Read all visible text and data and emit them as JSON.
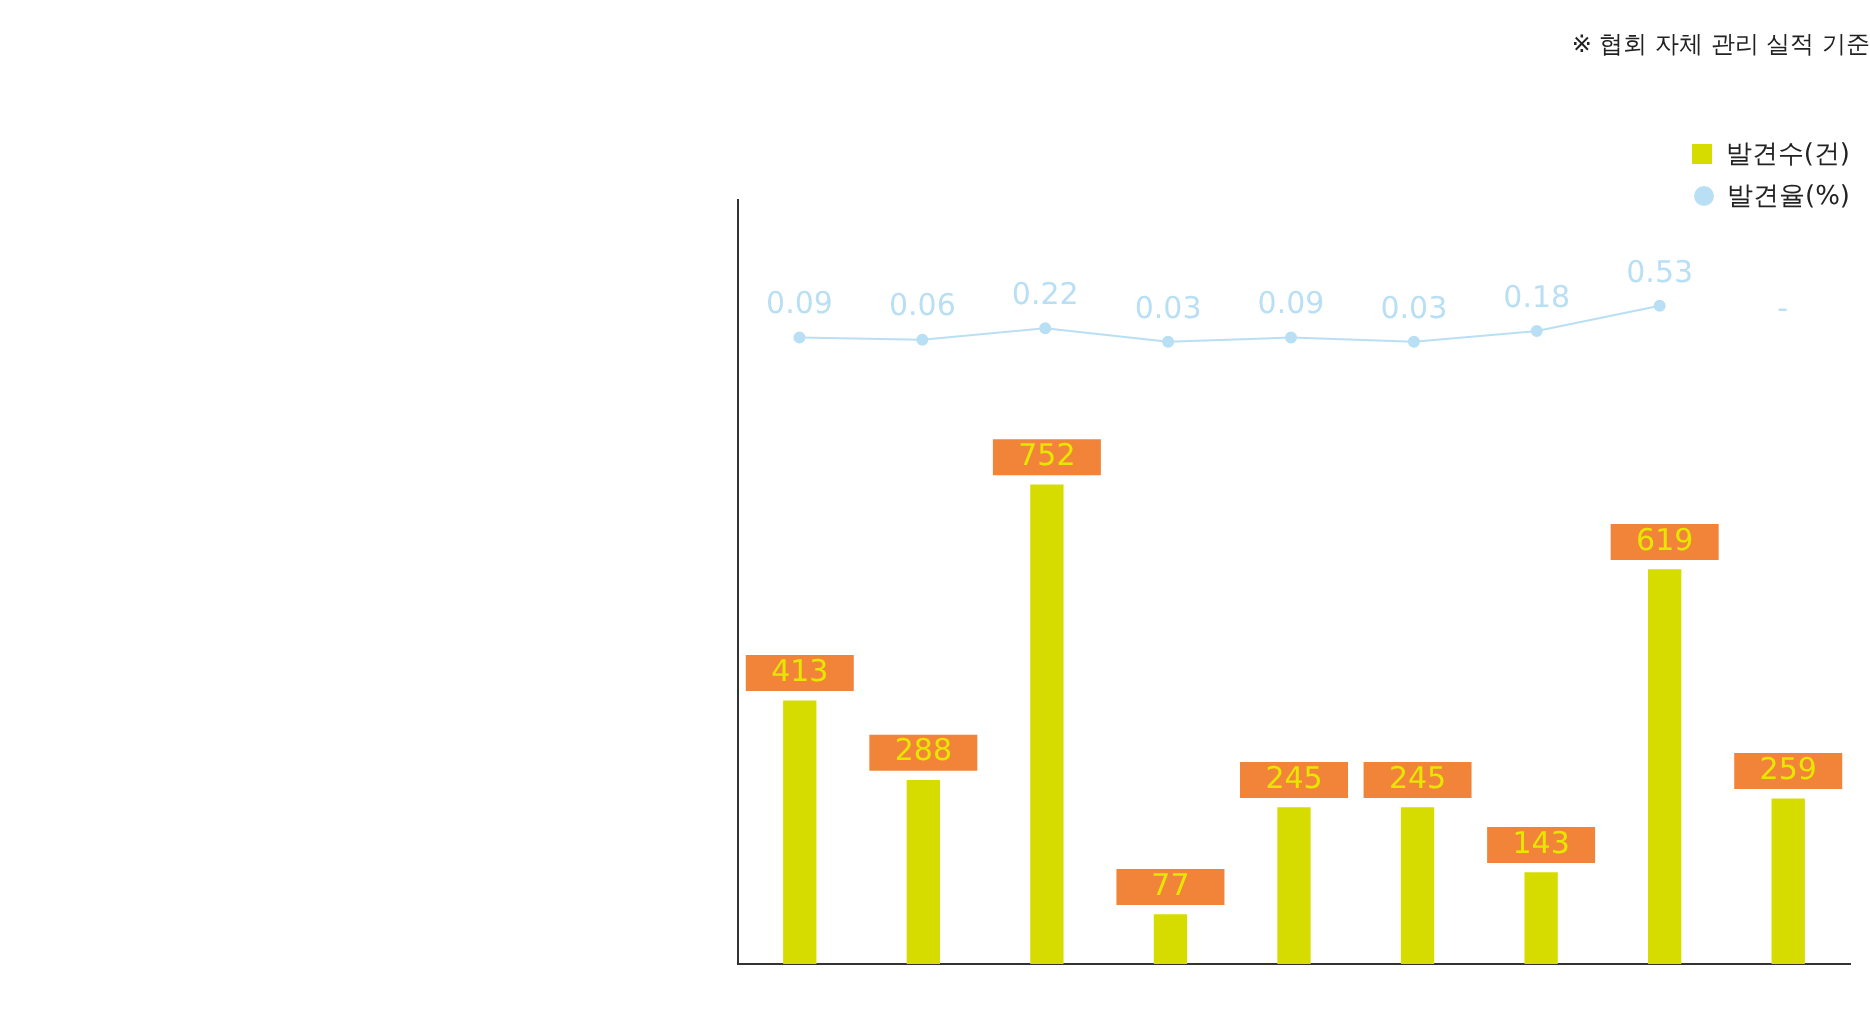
{
  "chart_data": [
    {
      "type": "bar",
      "categories": [
        null,
        null,
        null,
        null,
        null,
        null,
        null,
        null,
        null
      ],
      "series": [
        {
          "name": "발견수(건)",
          "color": "#d6dc00",
          "values": [
            413,
            288,
            752,
            77,
            245,
            245,
            143,
            619,
            259
          ]
        }
      ],
      "tick_labels": false,
      "data_labels": true,
      "legend": "top right",
      "annotations": [
        "※ 협회 자체 관리 실적 기준"
      ]
    },
    {
      "type": "line",
      "categories": [
        null,
        null,
        null,
        null,
        null,
        null,
        null,
        null,
        null
      ],
      "series": [
        {
          "name": "발견율(%)",
          "color": "#b9dff5",
          "values": [
            0.09,
            0.06,
            0.22,
            0.03,
            0.09,
            0.03,
            0.18,
            0.53,
            null
          ],
          "value_labels": [
            "0.09",
            "0.06",
            "0.22",
            "0.03",
            "0.09",
            "0.03",
            "0.18",
            "0.53",
            "-"
          ]
        }
      ],
      "tick_labels": false,
      "marker": "circle",
      "legend": "top right"
    }
  ]
}
